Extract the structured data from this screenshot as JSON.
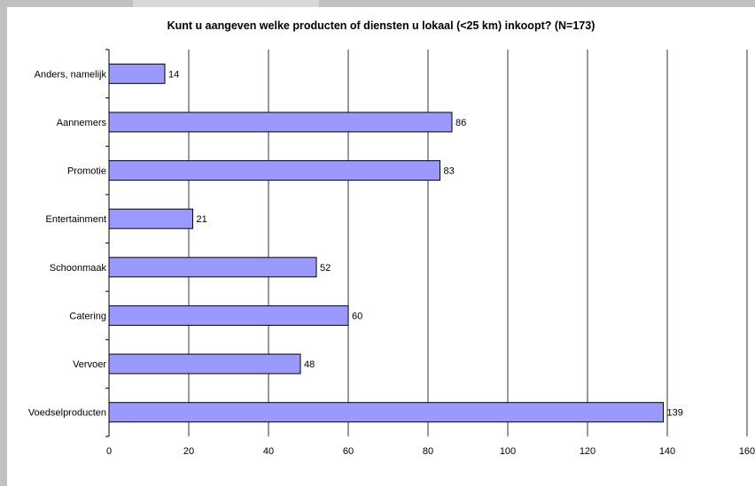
{
  "chart_data": {
    "type": "bar",
    "orientation": "horizontal",
    "title": "Kunt u aangeven welke producten of diensten u lokaal (<25 km) inkoopt? (N=173)",
    "categories": [
      "Anders, namelijk",
      "Aannemers",
      "Promotie",
      "Entertainment",
      "Schoonmaak",
      "Catering",
      "Vervoer",
      "Voedselproducten"
    ],
    "values": [
      14,
      86,
      83,
      21,
      52,
      60,
      48,
      139
    ],
    "xlim": [
      0,
      160
    ],
    "x_ticks": [
      "0",
      "20",
      "40",
      "60",
      "80",
      "100",
      "120",
      "140",
      "160"
    ],
    "grid": "vertical",
    "legend": "none",
    "colors": {
      "bar_fill": "#9999ff",
      "bar_stroke": "#000000",
      "gridline": "#000000",
      "frame": "#c0c0c0"
    }
  }
}
